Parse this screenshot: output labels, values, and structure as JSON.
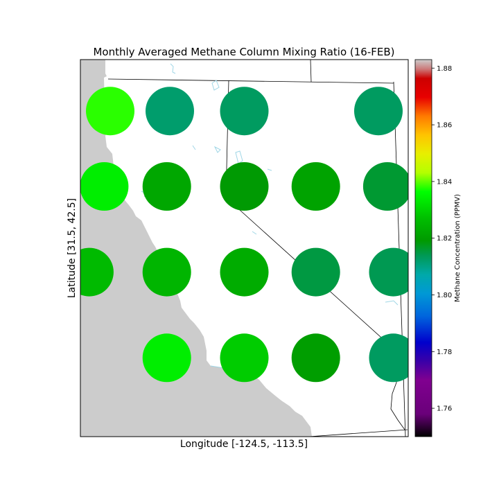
{
  "chart_data": {
    "type": "scatter",
    "title": "Monthly Averaged Methane Column Mixing Ratio (16-FEB)",
    "xlabel": "Longitude [-124.5, -113.5]",
    "ylabel": "Latitude [31.5, 42.5]",
    "xlim": [
      -124.5,
      -113.5
    ],
    "ylim": [
      31.5,
      42.5
    ],
    "colorbar": {
      "label": "Methane Concentration (PPMV)",
      "range": [
        1.75,
        1.883
      ],
      "ticks": [
        "1.76",
        "1.78",
        "1.80",
        "1.82",
        "1.84",
        "1.86",
        "1.88"
      ],
      "colormap": "nipy_spectral"
    },
    "points": [
      {
        "lon": -123.5,
        "lat": 41.0,
        "value": 1.838
      },
      {
        "lon": -121.5,
        "lat": 41.0,
        "value": 1.812
      },
      {
        "lon": -119.0,
        "lat": 41.0,
        "value": 1.813
      },
      {
        "lon": -114.5,
        "lat": 41.0,
        "value": 1.813
      },
      {
        "lon": -123.7,
        "lat": 38.8,
        "value": 1.834
      },
      {
        "lon": -121.6,
        "lat": 38.8,
        "value": 1.822
      },
      {
        "lon": -119.0,
        "lat": 38.8,
        "value": 1.819
      },
      {
        "lon": -116.6,
        "lat": 38.8,
        "value": 1.821
      },
      {
        "lon": -114.2,
        "lat": 38.8,
        "value": 1.816
      },
      {
        "lon": -124.2,
        "lat": 36.3,
        "value": 1.826
      },
      {
        "lon": -121.6,
        "lat": 36.3,
        "value": 1.825
      },
      {
        "lon": -119.0,
        "lat": 36.3,
        "value": 1.823
      },
      {
        "lon": -116.6,
        "lat": 36.3,
        "value": 1.815
      },
      {
        "lon": -114.0,
        "lat": 36.3,
        "value": 1.814
      },
      {
        "lon": -121.6,
        "lat": 33.8,
        "value": 1.834
      },
      {
        "lon": -119.0,
        "lat": 33.8,
        "value": 1.829
      },
      {
        "lon": -116.6,
        "lat": 33.8,
        "value": 1.82
      },
      {
        "lon": -114.0,
        "lat": 33.8,
        "value": 1.813
      }
    ]
  }
}
